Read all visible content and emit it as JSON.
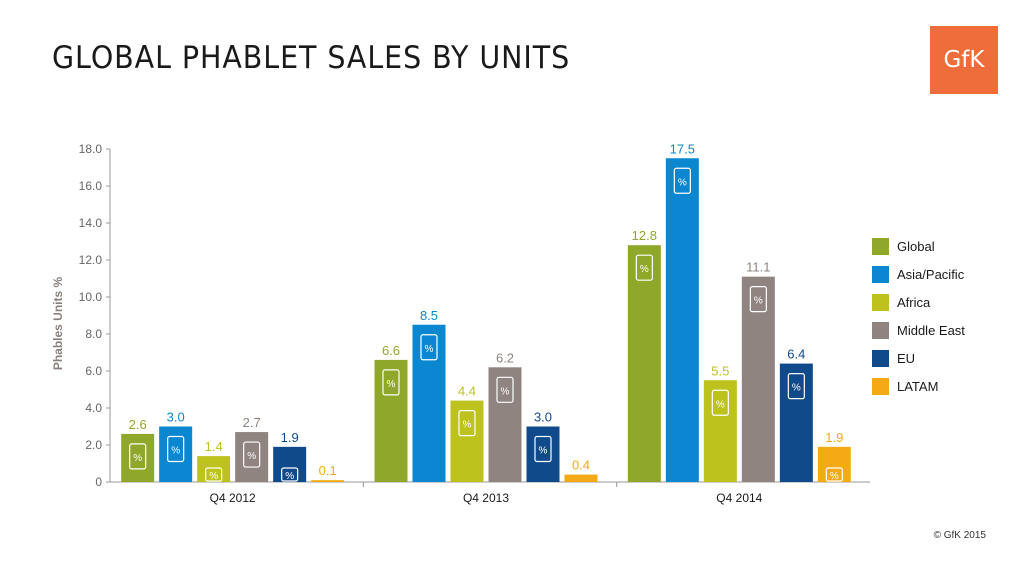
{
  "header": {
    "title": "GLOBAL PHABLET SALES BY UNITS",
    "logo_text": "GfK"
  },
  "footer": {
    "copyright": "© GfK 2015"
  },
  "chart_data": {
    "type": "bar",
    "title": "GLOBAL PHABLET SALES BY UNITS",
    "xlabel": "",
    "ylabel": "Phables Units %",
    "ylim": [
      0,
      18
    ],
    "yticks": [
      0,
      2,
      4,
      6,
      8,
      10,
      12,
      14,
      16,
      18
    ],
    "ytick_labels": [
      "0",
      "2.0",
      "4.0",
      "6.0",
      "8.0",
      "10.0",
      "12.0",
      "14.0",
      "16.0",
      "18.0"
    ],
    "categories": [
      "Q4 2012",
      "Q4 2013",
      "Q4 2014"
    ],
    "bar_icon": "phone-percent-icon",
    "bar_icon_text": "%",
    "legend_position": "right",
    "series": [
      {
        "name": "Global",
        "color": "#8fa829",
        "values": [
          2.6,
          6.6,
          12.8
        ],
        "labels": [
          "2.6",
          "6.6",
          "12.8"
        ]
      },
      {
        "name": "Asia/Pacific",
        "color": "#0a87d0",
        "values": [
          3.0,
          8.5,
          17.5
        ],
        "labels": [
          "3.0",
          "8.5",
          "17.5"
        ]
      },
      {
        "name": "Africa",
        "color": "#bec21d",
        "values": [
          1.4,
          4.4,
          5.5
        ],
        "labels": [
          "1.4",
          "4.4",
          "5.5"
        ]
      },
      {
        "name": "Middle East",
        "color": "#8f8480",
        "values": [
          2.7,
          6.2,
          11.1
        ],
        "labels": [
          "2.7",
          "6.2",
          "11.1"
        ]
      },
      {
        "name": "EU",
        "color": "#114a8a",
        "values": [
          1.9,
          3.0,
          6.4
        ],
        "labels": [
          "1.9",
          "3.0",
          "6.4"
        ]
      },
      {
        "name": "LATAM",
        "color": "#f4aa14",
        "values": [
          0.1,
          0.4,
          1.9
        ],
        "labels": [
          "0.1",
          "0.4",
          "1.9"
        ]
      }
    ]
  }
}
